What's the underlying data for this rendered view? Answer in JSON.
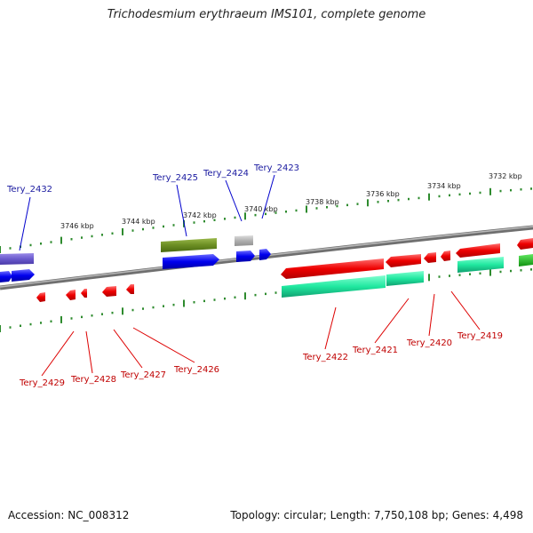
{
  "title": "Trichodesmium erythraeum IMS101, complete genome",
  "footer": {
    "accession": "Accession: NC_008312",
    "summary": "Topology: circular; Length: 7,750,108 bp; Genes: 4,498"
  },
  "colors": {
    "backbone": "#808080",
    "tick": "#2e8b2e",
    "forward_gene": "#0000ee",
    "reverse_gene": "#ee0000",
    "label_forward": "#1a1aa0",
    "label_reverse": "#c00000",
    "cds_green": "#20e8a0",
    "olive": "#6b8e23",
    "purple": "#6a5acd",
    "grey_feature": "#b0b0b0"
  },
  "coordinate_labels": [
    "3746 kbp",
    "3744 kbp",
    "3742 kbp",
    "3740 kbp",
    "3738 kbp",
    "3736 kbp",
    "3734 kbp",
    "3732 kbp"
  ],
  "forward_genes": [
    "Tery_2432",
    "Tery_2425",
    "Tery_2424",
    "Tery_2423"
  ],
  "reverse_genes": [
    "Tery_2429",
    "Tery_2428",
    "Tery_2427",
    "Tery_2426",
    "Tery_2422",
    "Tery_2421",
    "Tery_2420",
    "Tery_2419"
  ]
}
